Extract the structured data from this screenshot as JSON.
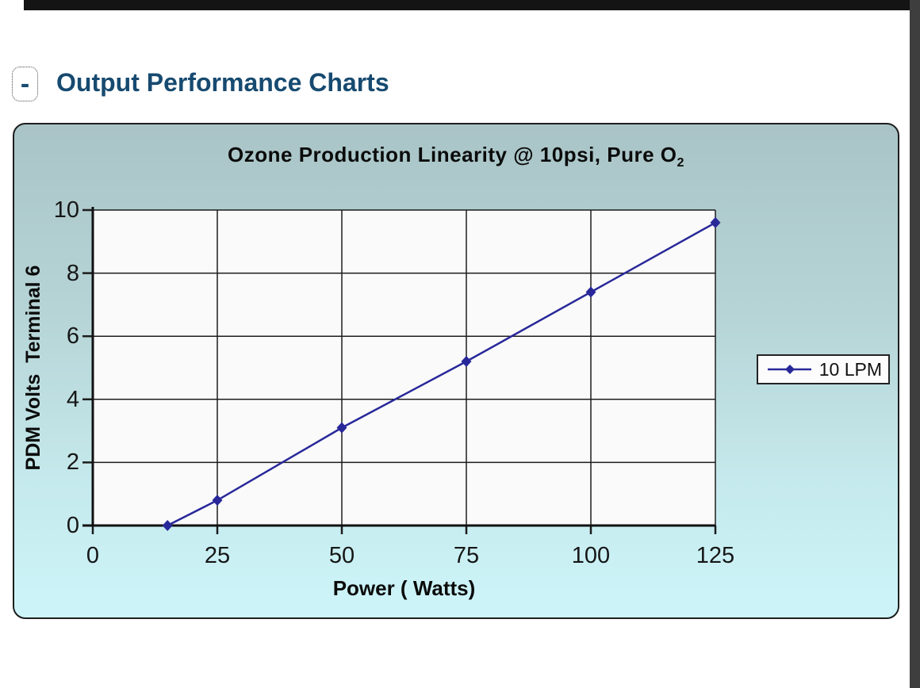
{
  "colors": {
    "heading": "#174a70",
    "top_bar": "#141414",
    "right_strip": "#3e3e3e",
    "panel_top": "#a9c4c6",
    "panel_bottom": "#cdf5f9",
    "panel_border": "#1e1e1e",
    "plot_bg": "#fafafa",
    "grid": "#1c1c1c",
    "axis": "#111111",
    "series": "#28289a",
    "legend_bg": "#fcfcfc"
  },
  "header": {
    "collapse_label": "-",
    "title": "Output Performance Charts"
  },
  "chart_data": {
    "type": "line",
    "title": "Ozone Production Linearity @ 10psi, Pure O₂",
    "title_main": "Ozone Production Linearity @ 10psi, Pure O",
    "title_sub": "2",
    "xlabel": "Power ( Watts)",
    "ylabel": "PDM Volts  Terminal 6",
    "xlim": [
      0,
      125
    ],
    "ylim": [
      0,
      10
    ],
    "x_ticks": [
      0,
      25,
      50,
      75,
      100,
      125
    ],
    "y_ticks": [
      0,
      2,
      4,
      6,
      8,
      10
    ],
    "grid": true,
    "legend_position": "right",
    "series": [
      {
        "name": "10 LPM",
        "color": "#28289a",
        "marker": "diamond",
        "x": [
          15,
          25,
          50,
          75,
          100,
          125
        ],
        "y": [
          0,
          0.8,
          3.1,
          5.2,
          7.4,
          9.6
        ]
      }
    ]
  },
  "legend": {
    "entries": [
      "10 LPM"
    ]
  }
}
